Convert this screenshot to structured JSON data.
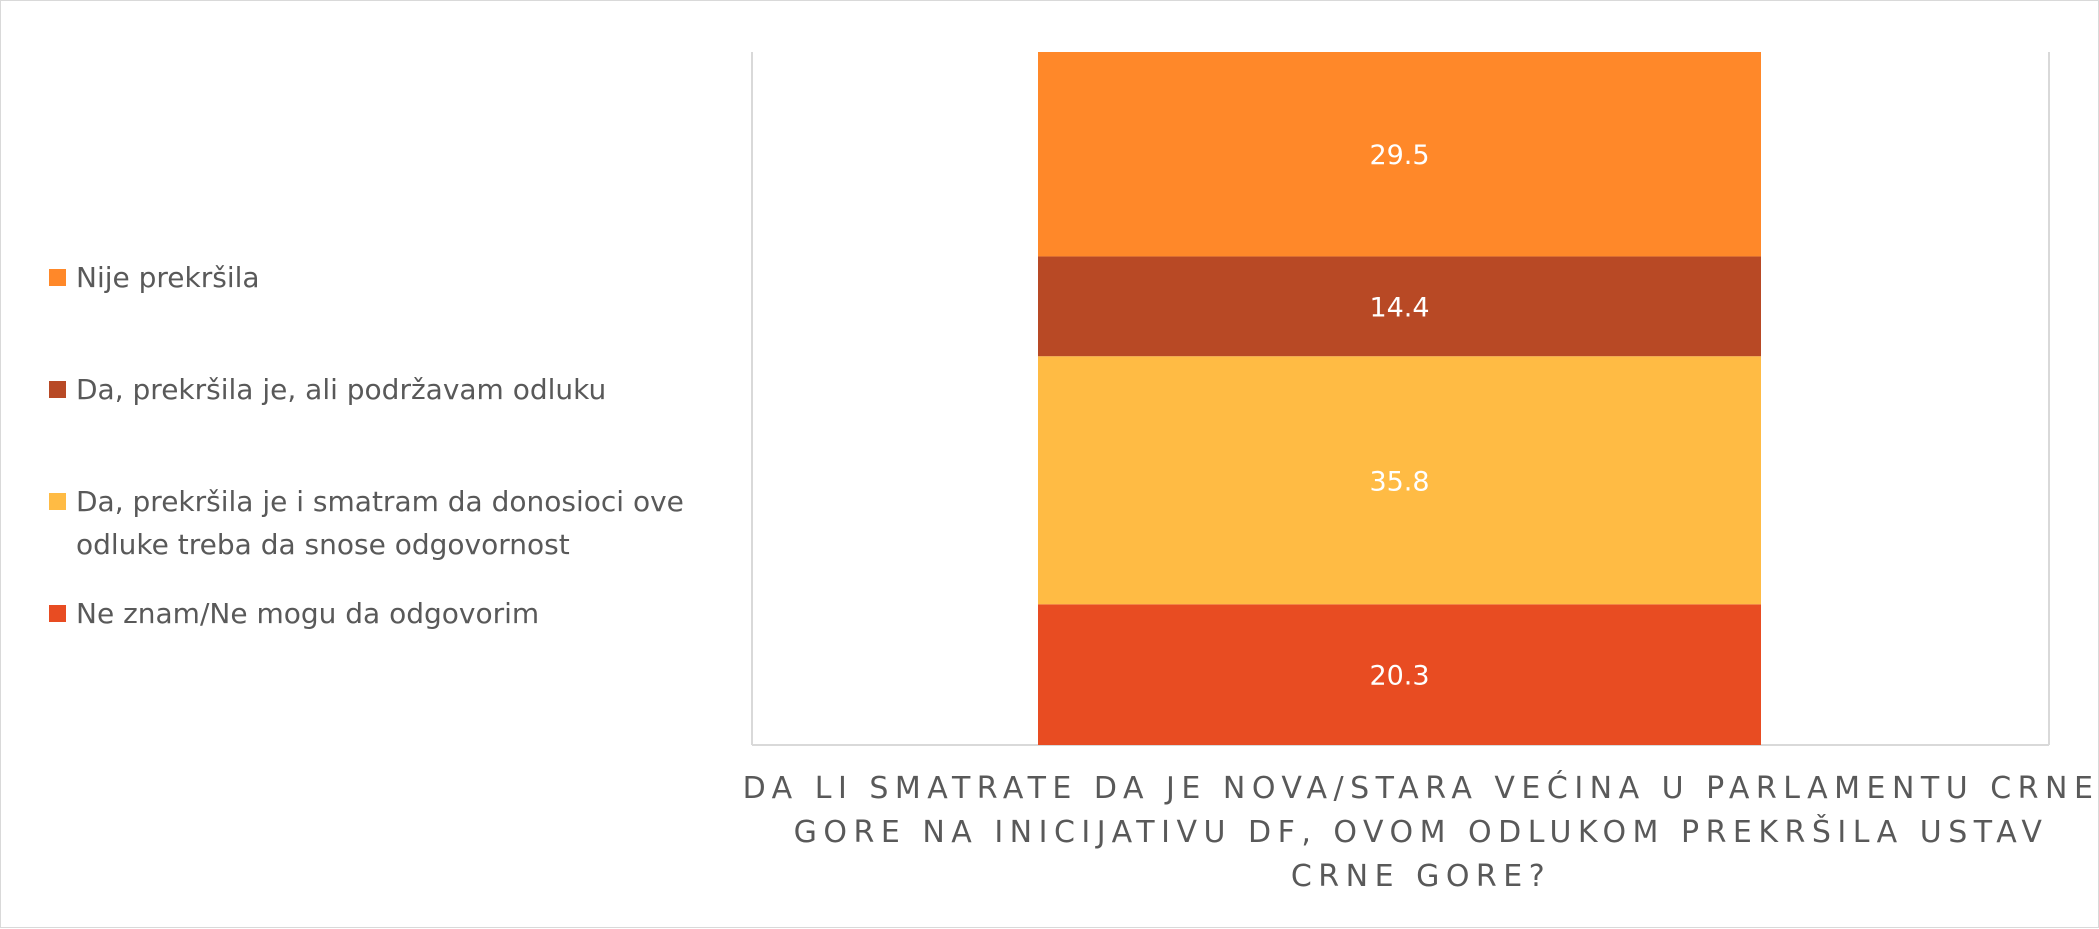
{
  "chart_data": {
    "type": "bar",
    "stacked": true,
    "orientation": "vertical",
    "categories": [
      "DA LI SMATRATE DA JE NOVA/STARA VEĆINA U PARLAMENTU CRNE GORE NA INICIJATIVU DF, OVOM ODLUKOM PREKRŠILA USTAV CRNE GORE?"
    ],
    "x_title_lines": [
      "DA LI SMATRATE DA JE NOVA/STARA VEĆINA U PARLAMENTU CRNE",
      "GORE NA INICIJATIVU DF, OVOM ODLUKOM PREKRŠILA USTAV",
      "CRNE GORE?"
    ],
    "series": [
      {
        "name": "Ne znam/Ne mogu da odgovorim",
        "values": [
          20.3
        ],
        "value_label": "20.3",
        "color": "#E84C22"
      },
      {
        "name": "Da, prekršila je i smatram da donosioci ove odluke treba da snose odgovornost",
        "values": [
          35.8
        ],
        "value_label": "35.8",
        "color": "#FFBB44"
      },
      {
        "name": "Da, prekršila je, ali podržavam odluku",
        "values": [
          14.4
        ],
        "value_label": "14.4",
        "color": "#B84925"
      },
      {
        "name": "Nije prekršila",
        "values": [
          29.5
        ],
        "value_label": "29.5",
        "color": "#FF8829"
      }
    ],
    "legend": {
      "position": "left",
      "items": [
        {
          "name": "Nije prekršila",
          "lines": [
            "Nije prekršila"
          ],
          "color": "#FF8829"
        },
        {
          "name": "Da, prekršila je, ali podržavam odluku",
          "lines": [
            "Da, prekršila je, ali podržavam odluku"
          ],
          "color": "#B84925"
        },
        {
          "name": "Da, prekršila je i smatram da donosioci ove odluke treba da snose odgovornost",
          "lines": [
            "Da, prekršila je i smatram da donosioci ove",
            "odluke treba da snose odgovornost"
          ],
          "color": "#FFBB44"
        },
        {
          "name": "Ne znam/Ne mogu da odgovorim",
          "lines": [
            "Ne znam/Ne mogu da odgovorim"
          ],
          "color": "#E84C22"
        }
      ]
    },
    "ylim": [
      0,
      100
    ],
    "grid": false
  }
}
